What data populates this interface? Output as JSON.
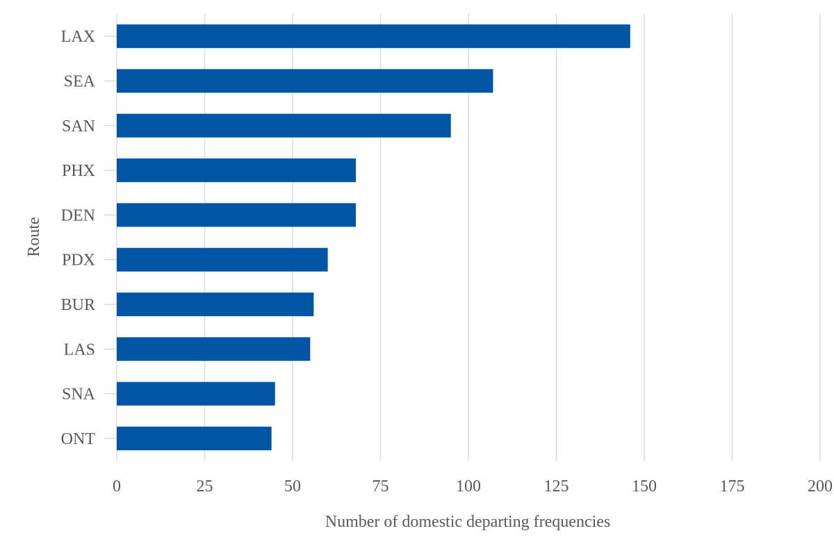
{
  "chart_data": {
    "type": "bar",
    "orientation": "horizontal",
    "categories": [
      "LAX",
      "SEA",
      "SAN",
      "PHX",
      "DEN",
      "PDX",
      "BUR",
      "LAS",
      "SNA",
      "ONT"
    ],
    "values": [
      146,
      107,
      95,
      68,
      68,
      60,
      56,
      55,
      45,
      44
    ],
    "xlabel": "Number of domestic departing frequencies",
    "ylabel": "Route",
    "xlim": [
      0,
      200
    ],
    "xticks": [
      0,
      25,
      50,
      75,
      100,
      125,
      150,
      175,
      200
    ],
    "grid": "vertical",
    "legend": "none",
    "bar_color": "#0055A5",
    "grid_color": "#D9D9D9",
    "text_color": "#595959"
  }
}
